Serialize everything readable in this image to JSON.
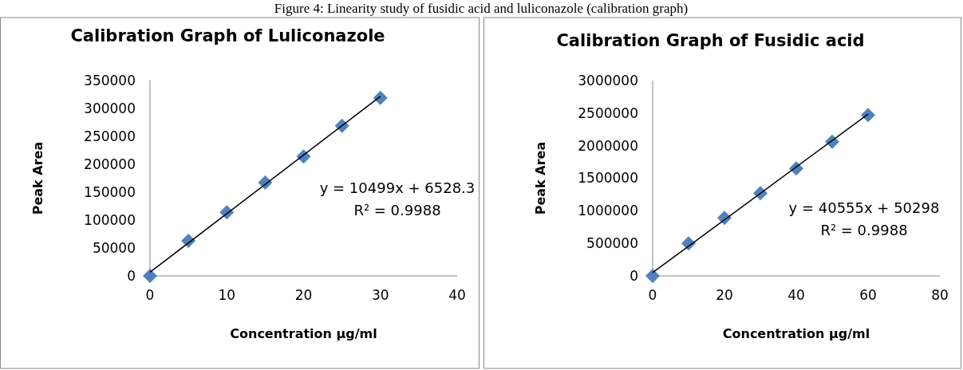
{
  "chart_data": [
    {
      "type": "scatter",
      "title": "Calibration Graph of Luliconazole",
      "xlabel": "Concentration µg/ml",
      "ylabel": "Peak Area",
      "annotations": [
        "Figure 4: Linearity study of fusidic acid and luliconazole (calibration graph)",
        "y = 10499x + 6528.3",
        "R² = 0.9988"
      ],
      "xlim": [
        0,
        40
      ],
      "xticks": [
        0,
        10,
        20,
        30,
        40
      ],
      "ylim": [
        0,
        350000
      ],
      "yticks": [
        0,
        50000,
        100000,
        150000,
        200000,
        250000,
        300000,
        350000
      ],
      "grid": false,
      "marker": "diamond",
      "series": [
        {
          "type": "scatter",
          "color": "#4f81bd",
          "x": [
            0,
            5,
            10,
            15,
            20,
            25,
            30
          ],
          "values": [
            0,
            63000,
            114000,
            167000,
            214000,
            269000,
            319000
          ]
        },
        {
          "type": "line",
          "color": "#000000",
          "marker": "none",
          "x": [
            0,
            30
          ],
          "values": [
            6500,
            321500
          ]
        }
      ]
    },
    {
      "type": "scatter",
      "title": "Calibration Graph of Fusidic acid",
      "xlabel": "Concentration µg/ml",
      "ylabel": "Peak Area",
      "annotations": [
        "y = 40555x + 50298",
        "R² = 0.9988"
      ],
      "xlim": [
        0,
        80
      ],
      "xticks": [
        0,
        20,
        40,
        60,
        80
      ],
      "ylim": [
        0,
        3000000
      ],
      "yticks": [
        0,
        500000,
        1000000,
        1500000,
        2000000,
        2500000,
        3000000
      ],
      "grid": false,
      "marker": "diamond",
      "series": [
        {
          "type": "scatter",
          "color": "#4f81bd",
          "x": [
            0,
            10,
            20,
            30,
            40,
            50,
            60
          ],
          "values": [
            0,
            500000,
            890000,
            1270000,
            1650000,
            2060000,
            2470000
          ]
        },
        {
          "type": "line",
          "color": "#000000",
          "marker": "none",
          "x": [
            0,
            60
          ],
          "values": [
            50000,
            2484000
          ]
        }
      ]
    }
  ]
}
